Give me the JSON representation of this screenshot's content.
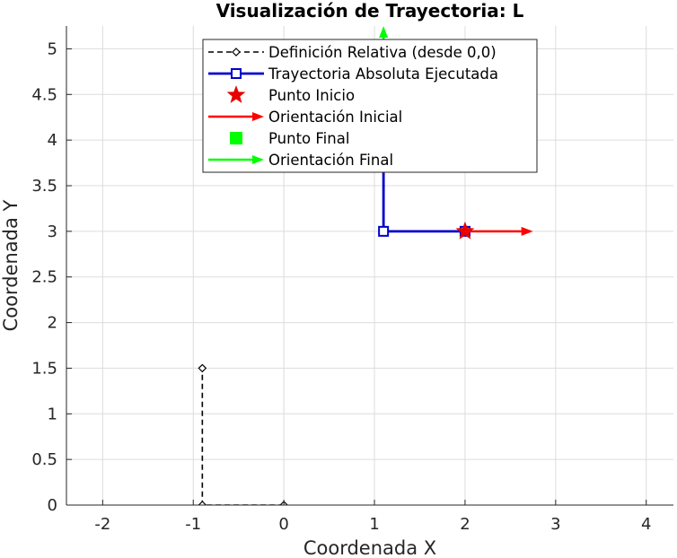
{
  "chart_data": {
    "type": "line",
    "title": "Visualización de Trayectoria: L",
    "xlabel": "Coordenada X",
    "ylabel": "Coordenada Y",
    "xlim": [
      -2.4,
      4.3
    ],
    "ylim": [
      0,
      5.25
    ],
    "xticks": [
      -2,
      -1,
      0,
      1,
      2,
      3,
      4
    ],
    "xtick_labels": [
      "-2",
      "-1",
      "0",
      "1",
      "2",
      "3",
      "4"
    ],
    "yticks": [
      0,
      0.5,
      1,
      1.5,
      2,
      2.5,
      3,
      3.5,
      4,
      4.5,
      5
    ],
    "ytick_labels": [
      "0",
      "0.5",
      "1",
      "1.5",
      "2",
      "2.5",
      "3",
      "3.5",
      "4",
      "4.5",
      "5"
    ],
    "grid": true,
    "legend_position": "top-center",
    "series": [
      {
        "name": "Definición Relativa (desde 0,0)",
        "kind": "line",
        "style": "dashed",
        "marker": "diamond",
        "color": "#000000",
        "x": [
          0,
          -0.9,
          -0.9
        ],
        "y": [
          0,
          0,
          1.5
        ]
      },
      {
        "name": "Trayectoria Absoluta Ejecutada",
        "kind": "line",
        "style": "solid",
        "marker": "square",
        "color": "#0000cc",
        "x": [
          2,
          1.1,
          1.1
        ],
        "y": [
          3,
          3,
          4.5
        ]
      },
      {
        "name": "Punto Inicio",
        "kind": "marker",
        "marker": "star",
        "color": "#e60000",
        "x": [
          2
        ],
        "y": [
          3
        ]
      },
      {
        "name": "Orientación Inicial",
        "kind": "arrow",
        "color": "#ff0000",
        "x": [
          2
        ],
        "y": [
          3
        ],
        "dx": 0.75,
        "dy": 0
      },
      {
        "name": "Punto Final",
        "kind": "marker",
        "marker": "square-filled",
        "color": "#00ff00",
        "x": [
          1.1
        ],
        "y": [
          4.5
        ]
      },
      {
        "name": "Orientación Final",
        "kind": "arrow",
        "color": "#00ff00",
        "x": [
          1.1
        ],
        "y": [
          4.5
        ],
        "dx": 0,
        "dy": 0.75
      }
    ]
  }
}
